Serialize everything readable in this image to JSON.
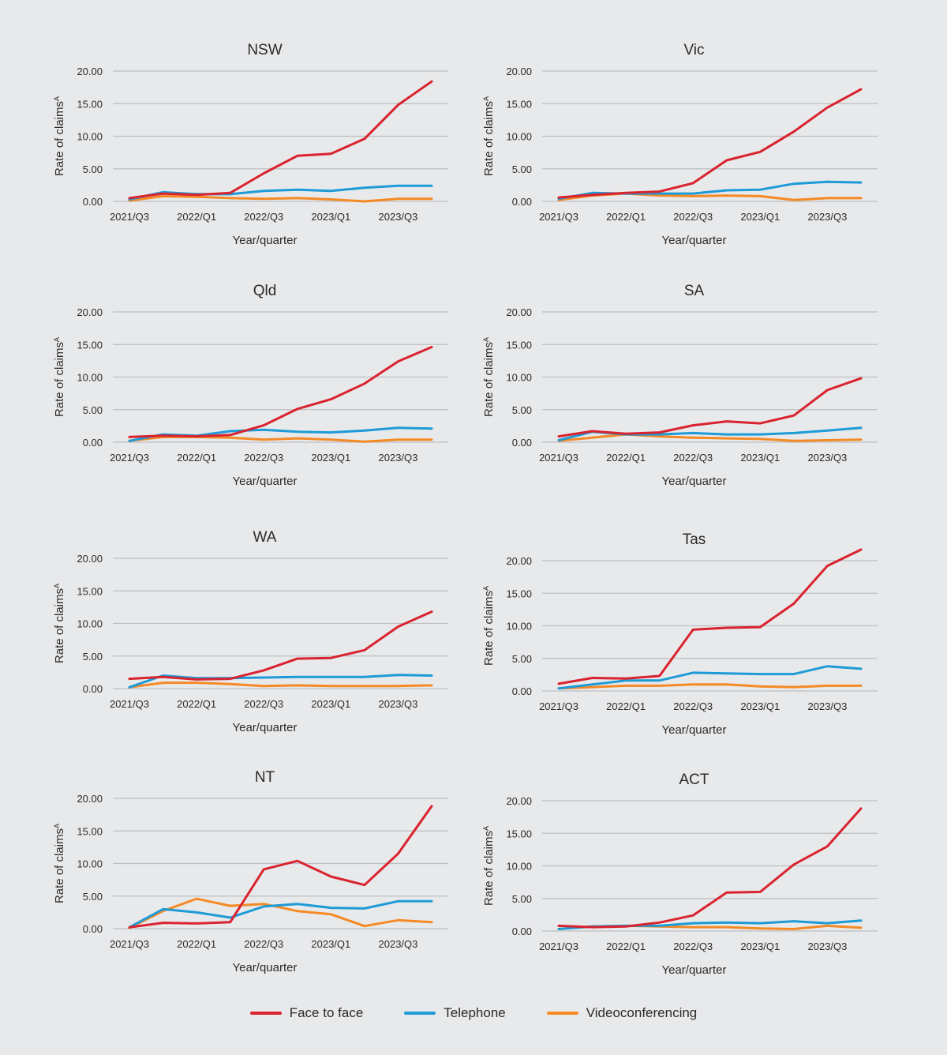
{
  "legend": [
    {
      "name": "Face to face",
      "color": "#d9232f"
    },
    {
      "name": "Telephone",
      "color": "#1e9bd7"
    },
    {
      "name": "Videoconferencing",
      "color": "#f58a25"
    }
  ],
  "chart_data": [
    {
      "type": "line",
      "title": "NSW",
      "xlabel": "Year/quarter",
      "ylabel": "Rate of claims^A",
      "ylim": [
        0,
        20
      ],
      "yticks": [
        "0.00",
        "5.00",
        "10.00",
        "15.00",
        "20.00"
      ],
      "grid": true,
      "x": [
        "2021/Q3",
        "2021/Q4",
        "2022/Q1",
        "2022/Q2",
        "2022/Q3",
        "2022/Q4",
        "2023/Q1",
        "2023/Q2",
        "2023/Q3",
        "2023/Q4"
      ],
      "xtick_labels": [
        "2021/Q3",
        "2022/Q1",
        "2022/Q3",
        "2023/Q1",
        "2023/Q3"
      ],
      "series": [
        {
          "name": "Face to face",
          "values": [
            0.5,
            1.2,
            1.0,
            1.3,
            4.3,
            7.0,
            7.3,
            9.6,
            14.8,
            18.4
          ]
        },
        {
          "name": "Telephone",
          "values": [
            0.3,
            1.4,
            1.1,
            1.1,
            1.6,
            1.8,
            1.6,
            2.1,
            2.4,
            2.4
          ]
        },
        {
          "name": "Videoconferencing",
          "values": [
            0.1,
            0.8,
            0.7,
            0.5,
            0.4,
            0.5,
            0.3,
            0.0,
            0.4,
            0.4
          ]
        }
      ]
    },
    {
      "type": "line",
      "title": "Vic",
      "xlabel": "Year/quarter",
      "ylabel": "Rate of claims^A",
      "ylim": [
        0,
        20
      ],
      "yticks": [
        "0.00",
        "5.00",
        "10.00",
        "15.00",
        "20.00"
      ],
      "grid": true,
      "x": [
        "2021/Q3",
        "2021/Q4",
        "2022/Q1",
        "2022/Q2",
        "2022/Q3",
        "2022/Q4",
        "2023/Q1",
        "2023/Q2",
        "2023/Q3",
        "2023/Q4"
      ],
      "xtick_labels": [
        "2021/Q3",
        "2022/Q1",
        "2022/Q3",
        "2023/Q1",
        "2023/Q3"
      ],
      "series": [
        {
          "name": "Face to face",
          "values": [
            0.6,
            1.0,
            1.3,
            1.5,
            2.8,
            6.3,
            7.6,
            10.7,
            14.4,
            17.2
          ]
        },
        {
          "name": "Telephone",
          "values": [
            0.4,
            1.3,
            1.2,
            1.2,
            1.2,
            1.7,
            1.8,
            2.7,
            3.0,
            2.9
          ]
        },
        {
          "name": "Videoconferencing",
          "values": [
            0.2,
            0.9,
            1.2,
            0.9,
            0.8,
            0.9,
            0.8,
            0.2,
            0.5,
            0.5
          ]
        }
      ]
    },
    {
      "type": "line",
      "title": "Qld",
      "xlabel": "Year/quarter",
      "ylabel": "Rate of claims^A",
      "ylim": [
        0,
        20
      ],
      "yticks": [
        "0.00",
        "5.00",
        "10.00",
        "15.00",
        "20.00"
      ],
      "grid": true,
      "x": [
        "2021/Q3",
        "2021/Q4",
        "2022/Q1",
        "2022/Q2",
        "2022/Q3",
        "2022/Q4",
        "2023/Q1",
        "2023/Q2",
        "2023/Q3",
        "2023/Q4"
      ],
      "xtick_labels": [
        "2021/Q3",
        "2022/Q1",
        "2022/Q3",
        "2023/Q1",
        "2023/Q3"
      ],
      "series": [
        {
          "name": "Face to face",
          "values": [
            0.8,
            1.0,
            0.9,
            1.1,
            2.6,
            5.1,
            6.6,
            9.0,
            12.4,
            14.6
          ]
        },
        {
          "name": "Telephone",
          "values": [
            0.2,
            1.2,
            1.0,
            1.7,
            1.9,
            1.6,
            1.5,
            1.8,
            2.2,
            2.1
          ]
        },
        {
          "name": "Videoconferencing",
          "values": [
            0.2,
            0.8,
            0.8,
            0.7,
            0.4,
            0.6,
            0.4,
            0.1,
            0.4,
            0.4
          ]
        }
      ]
    },
    {
      "type": "line",
      "title": "SA",
      "xlabel": "Year/quarter",
      "ylabel": "Rate of claims^A",
      "ylim": [
        0,
        20
      ],
      "yticks": [
        "0.00",
        "5.00",
        "10.00",
        "15.00",
        "20.00"
      ],
      "grid": true,
      "x": [
        "2021/Q3",
        "2021/Q4",
        "2022/Q1",
        "2022/Q2",
        "2022/Q3",
        "2022/Q4",
        "2023/Q1",
        "2023/Q2",
        "2023/Q3",
        "2023/Q4"
      ],
      "xtick_labels": [
        "2021/Q3",
        "2022/Q1",
        "2022/Q3",
        "2023/Q1",
        "2023/Q3"
      ],
      "series": [
        {
          "name": "Face to face",
          "values": [
            0.9,
            1.7,
            1.3,
            1.5,
            2.6,
            3.2,
            2.9,
            4.1,
            8.0,
            9.8
          ]
        },
        {
          "name": "Telephone",
          "values": [
            0.3,
            1.6,
            1.2,
            1.2,
            1.4,
            1.2,
            1.2,
            1.4,
            1.8,
            2.2
          ]
        },
        {
          "name": "Videoconferencing",
          "values": [
            0.2,
            0.7,
            1.2,
            0.9,
            0.7,
            0.6,
            0.5,
            0.2,
            0.3,
            0.4
          ]
        }
      ]
    },
    {
      "type": "line",
      "title": "WA",
      "xlabel": "Year/quarter",
      "ylabel": "Rate of claims^A",
      "ylim": [
        0,
        20
      ],
      "yticks": [
        "0.00",
        "5.00",
        "10.00",
        "15.00",
        "20.00"
      ],
      "grid": true,
      "x": [
        "2021/Q3",
        "2021/Q4",
        "2022/Q1",
        "2022/Q2",
        "2022/Q3",
        "2022/Q4",
        "2023/Q1",
        "2023/Q2",
        "2023/Q3",
        "2023/Q4"
      ],
      "xtick_labels": [
        "2021/Q3",
        "2022/Q1",
        "2022/Q3",
        "2023/Q1",
        "2023/Q3"
      ],
      "series": [
        {
          "name": "Face to face",
          "values": [
            1.5,
            1.8,
            1.4,
            1.5,
            2.8,
            4.6,
            4.7,
            5.9,
            9.5,
            11.8
          ]
        },
        {
          "name": "Telephone",
          "values": [
            0.2,
            2.0,
            1.6,
            1.6,
            1.7,
            1.8,
            1.8,
            1.8,
            2.1,
            2.0
          ]
        },
        {
          "name": "Videoconferencing",
          "values": [
            0.2,
            0.9,
            0.9,
            0.7,
            0.4,
            0.5,
            0.4,
            0.4,
            0.4,
            0.5
          ]
        }
      ]
    },
    {
      "type": "line",
      "title": "Tas",
      "xlabel": "Year/quarter",
      "ylabel": "Rate of claims^A",
      "ylim": [
        0,
        20
      ],
      "yticks": [
        "0.00",
        "5.00",
        "10.00",
        "15.00",
        "20.00"
      ],
      "grid": true,
      "x": [
        "2021/Q3",
        "2021/Q4",
        "2022/Q1",
        "2022/Q2",
        "2022/Q3",
        "2022/Q4",
        "2023/Q1",
        "2023/Q2",
        "2023/Q3",
        "2023/Q4"
      ],
      "xtick_labels": [
        "2021/Q3",
        "2022/Q1",
        "2022/Q3",
        "2023/Q1",
        "2023/Q3"
      ],
      "series": [
        {
          "name": "Face to face",
          "values": [
            1.1,
            2.0,
            1.9,
            2.3,
            9.4,
            9.7,
            9.8,
            13.4,
            19.2,
            21.7
          ]
        },
        {
          "name": "Telephone",
          "values": [
            0.4,
            1.0,
            1.6,
            1.6,
            2.8,
            2.7,
            2.6,
            2.6,
            3.8,
            3.4
          ]
        },
        {
          "name": "Videoconferencing",
          "values": [
            0.4,
            0.6,
            0.8,
            0.8,
            1.0,
            1.0,
            0.7,
            0.6,
            0.8,
            0.8
          ]
        }
      ]
    },
    {
      "type": "line",
      "title": "NT",
      "xlabel": "Year/quarter",
      "ylabel": "Rate of claims^A",
      "ylim": [
        0,
        20
      ],
      "yticks": [
        "0.00",
        "5.00",
        "10.00",
        "15.00",
        "20.00"
      ],
      "grid": true,
      "x": [
        "2021/Q3",
        "2021/Q4",
        "2022/Q1",
        "2022/Q2",
        "2022/Q3",
        "2022/Q4",
        "2023/Q1",
        "2023/Q2",
        "2023/Q3",
        "2023/Q4"
      ],
      "xtick_labels": [
        "2021/Q3",
        "2022/Q1",
        "2022/Q3",
        "2023/Q1",
        "2023/Q3"
      ],
      "series": [
        {
          "name": "Face to face",
          "values": [
            0.2,
            0.9,
            0.8,
            1.0,
            9.1,
            10.4,
            8.0,
            6.7,
            11.5,
            18.8
          ]
        },
        {
          "name": "Telephone",
          "values": [
            0.2,
            3.0,
            2.5,
            1.7,
            3.4,
            3.8,
            3.2,
            3.1,
            4.2,
            4.2
          ]
        },
        {
          "name": "Videoconferencing",
          "values": [
            0.1,
            2.7,
            4.6,
            3.5,
            3.8,
            2.7,
            2.2,
            0.4,
            1.3,
            1.0
          ]
        }
      ]
    },
    {
      "type": "line",
      "title": "ACT",
      "xlabel": "Year/quarter",
      "ylabel": "Rate of claims^A",
      "ylim": [
        0,
        20
      ],
      "yticks": [
        "0.00",
        "5.00",
        "10.00",
        "15.00",
        "20.00"
      ],
      "grid": true,
      "x": [
        "2021/Q3",
        "2021/Q4",
        "2022/Q1",
        "2022/Q2",
        "2022/Q3",
        "2022/Q4",
        "2023/Q1",
        "2023/Q2",
        "2023/Q3",
        "2023/Q4"
      ],
      "xtick_labels": [
        "2021/Q3",
        "2022/Q1",
        "2022/Q3",
        "2023/Q1",
        "2023/Q3"
      ],
      "series": [
        {
          "name": "Face to face",
          "values": [
            0.8,
            0.6,
            0.7,
            1.3,
            2.4,
            5.9,
            6.0,
            10.2,
            13.0,
            18.8
          ]
        },
        {
          "name": "Telephone",
          "values": [
            0.3,
            0.7,
            0.8,
            0.8,
            1.2,
            1.3,
            1.2,
            1.5,
            1.2,
            1.6
          ]
        },
        {
          "name": "Videoconferencing",
          "values": [
            0.3,
            0.7,
            0.8,
            0.7,
            0.6,
            0.6,
            0.4,
            0.3,
            0.8,
            0.5
          ]
        }
      ]
    }
  ]
}
